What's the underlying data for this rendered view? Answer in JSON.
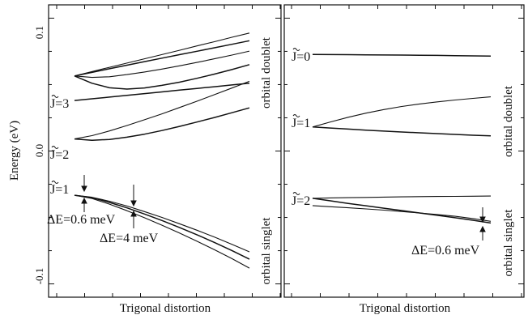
{
  "chart_data": [
    {
      "type": "line",
      "xlabel": "Trigonal distortion",
      "ylabel": "Energy (eV)",
      "ylim": [
        -0.11,
        0.11
      ],
      "yticks": [
        {
          "value": 0.1,
          "label": "0.1"
        },
        {
          "value": 0.0,
          "label": "0.0"
        },
        {
          "value": -0.1,
          "label": "-0.1"
        }
      ],
      "x": [
        0,
        0.1,
        0.2,
        0.3,
        0.4,
        0.5,
        0.6,
        0.7,
        0.8,
        0.9,
        1.0
      ],
      "series": [
        {
          "values": [
            0.038,
            0.0393,
            0.0406,
            0.0419,
            0.0432,
            0.0445,
            0.0458,
            0.0471,
            0.0484,
            0.0497,
            0.051
          ]
        },
        {
          "values": [
            0.0565,
            0.0598,
            0.063,
            0.0662,
            0.0694,
            0.0726,
            0.0758,
            0.0791,
            0.0823,
            0.0856,
            0.0888
          ]
        },
        {
          "values": [
            0.0565,
            0.0592,
            0.0619,
            0.0646,
            0.0673,
            0.0699,
            0.0725,
            0.0751,
            0.0777,
            0.0803,
            0.083
          ]
        },
        {
          "values": [
            0.0565,
            0.0554,
            0.0559,
            0.0575,
            0.0595,
            0.0617,
            0.0641,
            0.0667,
            0.0694,
            0.0722,
            0.0752
          ]
        },
        {
          "values": [
            0.0565,
            0.051,
            0.0476,
            0.0466,
            0.0475,
            0.0494,
            0.0518,
            0.0547,
            0.0579,
            0.0613,
            0.065
          ]
        },
        {
          "values": [
            0.0091,
            0.0116,
            0.0151,
            0.0192,
            0.0235,
            0.028,
            0.0327,
            0.0375,
            0.0424,
            0.0474,
            0.0525
          ]
        },
        {
          "values": [
            0.0091,
            0.0081,
            0.0087,
            0.0104,
            0.0127,
            0.0154,
            0.0185,
            0.0218,
            0.0252,
            0.0288,
            0.0325
          ]
        },
        {
          "values": [
            -0.0333,
            -0.0348,
            -0.0378,
            -0.0414,
            -0.0456,
            -0.05,
            -0.0547,
            -0.0596,
            -0.0648,
            -0.0702,
            -0.0759
          ]
        },
        {
          "values": [
            -0.0333,
            -0.0351,
            -0.0387,
            -0.0428,
            -0.0474,
            -0.0523,
            -0.0575,
            -0.063,
            -0.0688,
            -0.0749,
            -0.0814
          ]
        },
        {
          "values": [
            -0.0333,
            -0.0357,
            -0.04,
            -0.0449,
            -0.0502,
            -0.0558,
            -0.0617,
            -0.0679,
            -0.0743,
            -0.081,
            -0.0881
          ]
        }
      ],
      "level_labels": [
        {
          "text": "J=3",
          "value": 0.0565
        },
        {
          "text": "J=2",
          "value": 0.0091
        },
        {
          "text": "J=1",
          "value": -0.0333
        }
      ],
      "annotations": [
        "ΔE=0.6 meV",
        "ΔE=4 meV"
      ],
      "side_labels": {
        "upper": "orbital doublet",
        "lower": "orbital singlet"
      }
    },
    {
      "type": "line",
      "xlabel": "Trigonal distortion",
      "x": [
        0,
        0.1,
        0.2,
        0.3,
        0.4,
        0.5,
        0.6,
        0.7,
        0.8,
        0.9,
        1.0
      ],
      "series": [
        {
          "values": [
            0.0727,
            0.0726,
            0.0725,
            0.0724,
            0.0723,
            0.0722,
            0.0721,
            0.072,
            0.0718,
            0.0716,
            0.0714
          ]
        },
        {
          "values": [
            0.0181,
            0.0219,
            0.0254,
            0.0285,
            0.0312,
            0.0335,
            0.0354,
            0.037,
            0.0384,
            0.0396,
            0.0408
          ]
        },
        {
          "values": [
            0.0181,
            0.0173,
            0.0165,
            0.0157,
            0.015,
            0.0143,
            0.0137,
            0.0131,
            0.0125,
            0.0119,
            0.0114
          ]
        },
        {
          "values": [
            -0.0356,
            -0.0353,
            -0.0351,
            -0.0349,
            -0.0347,
            -0.0345,
            -0.0343,
            -0.0342,
            -0.0341,
            -0.034,
            -0.0339
          ]
        },
        {
          "values": [
            -0.0356,
            -0.0375,
            -0.0394,
            -0.0412,
            -0.043,
            -0.0448,
            -0.0466,
            -0.0484,
            -0.0502,
            -0.0521,
            -0.0542
          ]
        },
        {
          "values": [
            -0.0411,
            -0.0419,
            -0.0427,
            -0.0436,
            -0.0445,
            -0.0455,
            -0.0466,
            -0.0478,
            -0.0491,
            -0.0508,
            -0.0529
          ]
        }
      ],
      "level_labels": [
        {
          "text": "J=0",
          "value": 0.0727
        },
        {
          "text": "J=1",
          "value": 0.0181
        },
        {
          "text": "J=2",
          "value": -0.0356
        }
      ],
      "annotations": [
        "ΔE=0.6 meV"
      ],
      "side_labels": {
        "upper": "orbital doublet",
        "lower": "orbital singlet"
      }
    }
  ]
}
